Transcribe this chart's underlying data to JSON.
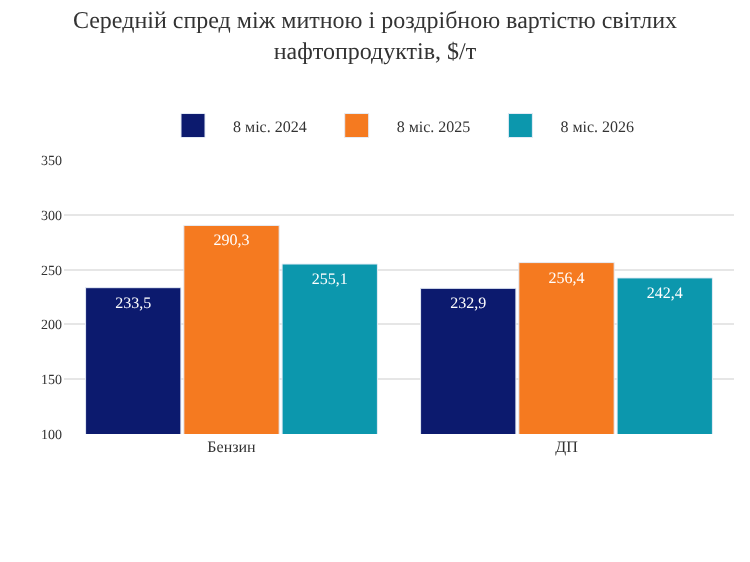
{
  "chart_data": {
    "type": "bar",
    "title": "Середній спред між митною і роздрібною вартістю світлих нафтопродуктів, $/т",
    "categories": [
      "Бензин",
      "ДП"
    ],
    "series": [
      {
        "name": "8 міс. 2024",
        "color": "#0c1a6e",
        "values": [
          233.5,
          232.9
        ],
        "value_labels": [
          "233,5",
          "232,9"
        ]
      },
      {
        "name": "8 міс. 2025",
        "color": "#f57a20",
        "values": [
          290.3,
          256.4
        ],
        "value_labels": [
          "290,3",
          "256,4"
        ]
      },
      {
        "name": "8 міс. 2026",
        "color": "#0c97ad",
        "values": [
          255.1,
          242.4
        ],
        "value_labels": [
          "255,1",
          "242,4"
        ]
      }
    ],
    "ylim": [
      100,
      350
    ],
    "yticks": [
      100,
      150,
      200,
      250,
      300,
      350
    ],
    "grid": "y",
    "legend": "top"
  }
}
